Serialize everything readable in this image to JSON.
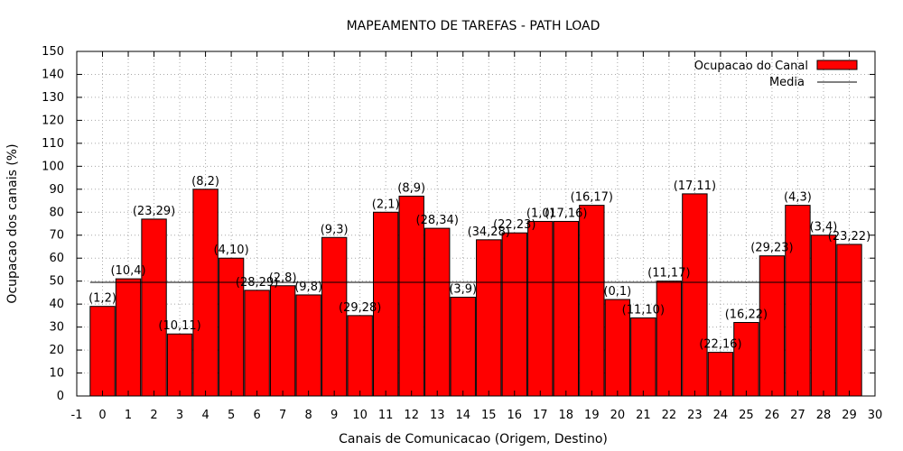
{
  "chart_data": {
    "type": "bar",
    "title": "MAPEAMENTO DE TAREFAS - PATH LOAD",
    "xlabel": "Canais de Comunicacao (Origem, Destino)",
    "ylabel": "Ocupacao dos canais (%)",
    "xlim": [
      -1,
      30
    ],
    "ylim": [
      0,
      150
    ],
    "x_ticks": [
      -1,
      0,
      1,
      2,
      3,
      4,
      5,
      6,
      7,
      8,
      9,
      10,
      11,
      12,
      13,
      14,
      15,
      16,
      17,
      18,
      19,
      20,
      21,
      22,
      23,
      24,
      25,
      26,
      27,
      28,
      29,
      30
    ],
    "y_ticks": [
      0,
      10,
      20,
      30,
      40,
      50,
      60,
      70,
      80,
      90,
      100,
      110,
      120,
      130,
      140,
      150
    ],
    "grid": true,
    "legend_position": "top-right",
    "series": [
      {
        "name": "Ocupacao do Canal",
        "color": "#ff0000",
        "x": [
          0,
          1,
          2,
          3,
          4,
          5,
          6,
          7,
          8,
          9,
          10,
          11,
          12,
          13,
          14,
          15,
          16,
          17,
          18,
          19,
          20,
          21,
          22,
          23,
          24,
          25,
          26,
          27,
          28,
          29
        ],
        "values": [
          39,
          51,
          77,
          27,
          90,
          60,
          46,
          48,
          44,
          69,
          35,
          80,
          87,
          73,
          43,
          68,
          71,
          76,
          76,
          83,
          42,
          34,
          50,
          88,
          19,
          32,
          61,
          83,
          70,
          66
        ],
        "labels": [
          "(1,2)",
          "(10,4)",
          "(23,29)",
          "(10,11)",
          "(8,2)",
          "(4,10)",
          "(28,29)",
          "(2,8)",
          "(9,8)",
          "(9,3)",
          "(29,28)",
          "(2,1)",
          "(8,9)",
          "(28,34)",
          "(3,9)",
          "(34,28)",
          "(22,23)",
          "(1,0)",
          "(17,16)",
          "(16,17)",
          "(0,1)",
          "(11,10)",
          "(11,17)",
          "(17,11)",
          "(22,16)",
          "(16,22)",
          "(29,23)",
          "(4,3)",
          "(3,4)",
          "(23,22)"
        ]
      },
      {
        "name": "Media",
        "color": "#000000",
        "type": "line",
        "value": 49.5
      }
    ]
  }
}
